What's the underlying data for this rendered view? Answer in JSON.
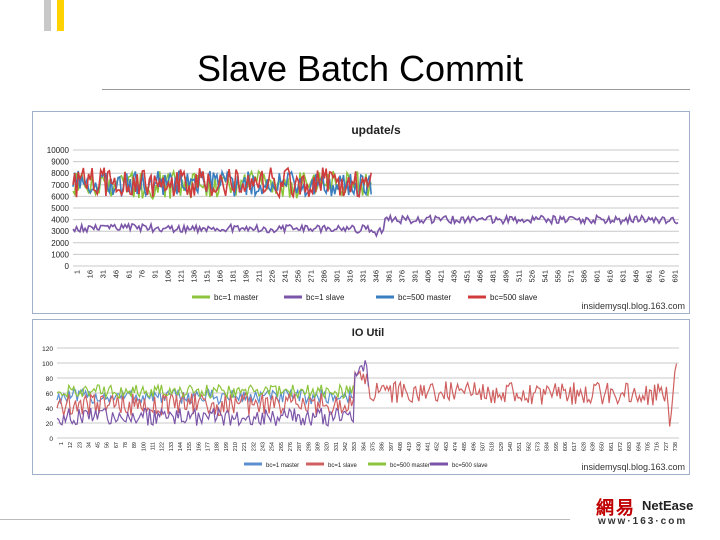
{
  "slide": {
    "title": "Slave Batch Commit",
    "logo": {
      "cn": "網易",
      "en": "NetEase",
      "url": "www·163·com"
    }
  },
  "colors": {
    "accent_yellow": "#ffd200",
    "accent_gray": "#c8c8c8",
    "bc1_master": "#8cc43c",
    "bc1_slave": "#7b55a8",
    "bc500_master": "#3a7ec0",
    "bc500_slave": "#d03c3c",
    "io_bc1_master": "#5b8fd0",
    "io_bc1_slave": "#d06060",
    "io_bc500_master": "#8cc43c",
    "io_bc500_slave": "#7b55a8"
  },
  "chart_data": [
    {
      "type": "line",
      "title": "update/s",
      "credit": "insidemysql.blog.163.com",
      "ylim": [
        0,
        10000
      ],
      "yticks": [
        "10000",
        "9000",
        "8000",
        "7000",
        "6000",
        "5000",
        "4000",
        "3000",
        "2000",
        "1000",
        "0"
      ],
      "xtick_labels": [
        "1",
        "16",
        "31",
        "46",
        "61",
        "76",
        "91",
        "106",
        "121",
        "136",
        "151",
        "166",
        "181",
        "196",
        "211",
        "226",
        "241",
        "256",
        "271",
        "286",
        "301",
        "316",
        "331",
        "346",
        "361",
        "376",
        "391",
        "406",
        "421",
        "436",
        "451",
        "466",
        "481",
        "496",
        "511",
        "526",
        "541",
        "556",
        "571",
        "586",
        "601",
        "616",
        "631",
        "646",
        "661",
        "676",
        "691"
      ],
      "xlim": [
        1,
        700
      ],
      "legend_position": "bottom",
      "series": [
        {
          "name": "bc=1 master",
          "color": "#8cc43c",
          "x": [
            1,
            346
          ],
          "y": [
            7000,
            7000
          ],
          "noise": 1200
        },
        {
          "name": "bc=1 slave",
          "color": "#7b55a8",
          "x": [
            1,
            345,
            346,
            360,
            361,
            700
          ],
          "y": [
            3300,
            3200,
            2600,
            3100,
            4000,
            4000
          ],
          "noise": 350
        },
        {
          "name": "bc=500 master",
          "color": "#3a7ec0",
          "x": [
            1,
            346
          ],
          "y": [
            7100,
            7100
          ],
          "noise": 1100
        },
        {
          "name": "bc=500 slave",
          "color": "#d03c3c",
          "x": [
            1,
            346
          ],
          "y": [
            7200,
            7200
          ],
          "noise": 1300
        }
      ],
      "grid": true
    },
    {
      "type": "line",
      "title": "IO Util",
      "credit": "insidemysql.blog.163.com",
      "ylim": [
        0,
        120
      ],
      "yticks": [
        "120",
        "100",
        "80",
        "60",
        "40",
        "20",
        "0"
      ],
      "xtick_labels": [
        "1",
        "12",
        "23",
        "34",
        "45",
        "56",
        "67",
        "78",
        "89",
        "100",
        "111",
        "122",
        "133",
        "144",
        "155",
        "166",
        "177",
        "188",
        "199",
        "210",
        "221",
        "232",
        "243",
        "254",
        "265",
        "276",
        "287",
        "298",
        "309",
        "320",
        "331",
        "342",
        "353",
        "364",
        "375",
        "386",
        "397",
        "408",
        "419",
        "430",
        "441",
        "452",
        "463",
        "474",
        "485",
        "496",
        "507",
        "518",
        "529",
        "540",
        "551",
        "562",
        "573",
        "584",
        "595",
        "606",
        "617",
        "628",
        "639",
        "650",
        "661",
        "672",
        "683",
        "694",
        "705",
        "716",
        "727",
        "738"
      ],
      "xlim": [
        1,
        740
      ],
      "legend_position": "bottom",
      "series": [
        {
          "name": "bc=1 master",
          "color": "#5b8fd0",
          "x": [
            1,
            353
          ],
          "y": [
            55,
            55
          ],
          "noise": 10
        },
        {
          "name": "bc=1 slave",
          "color": "#d06060",
          "x": [
            1,
            353,
            355,
            370,
            371,
            725,
            730,
            735,
            738
          ],
          "y": [
            45,
            45,
            85,
            80,
            62,
            58,
            20,
            95,
            97
          ],
          "noise": 15
        },
        {
          "name": "bc=500 master",
          "color": "#8cc43c",
          "x": [
            1,
            353
          ],
          "y": [
            62,
            62
          ],
          "noise": 9
        },
        {
          "name": "bc=500 slave",
          "color": "#7b55a8",
          "x": [
            1,
            353,
            355,
            370,
            372
          ],
          "y": [
            28,
            28,
            92,
            95,
            40
          ],
          "noise": 12
        }
      ],
      "grid": true
    }
  ]
}
